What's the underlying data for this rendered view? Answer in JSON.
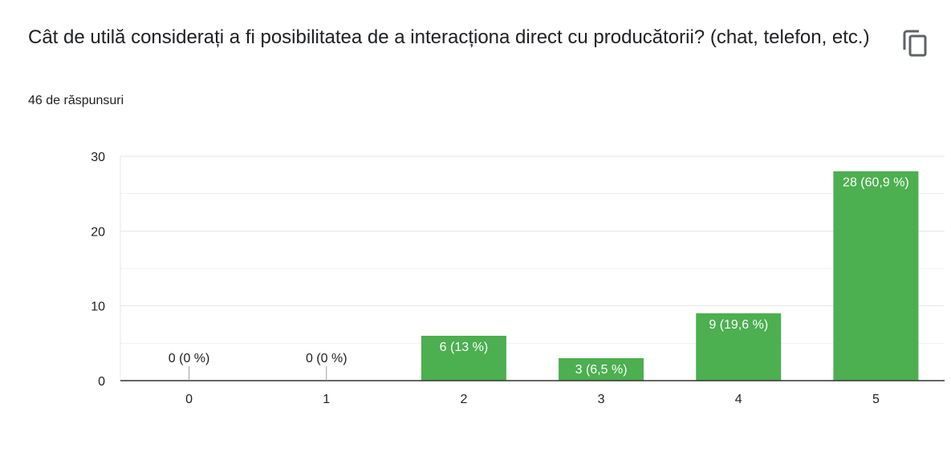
{
  "question": {
    "title": "Cât de utilă considerați a fi posibilitatea de a interacționa direct cu producătorii? (chat, telefon, etc.)",
    "response_count": "46 de răspunsuri",
    "copy_icon": "copy-icon"
  },
  "colors": {
    "bar": "#4caf50",
    "grid": "#e8e8e8",
    "axis": "#333333",
    "text": "#202124"
  },
  "chart_data": {
    "type": "bar",
    "categories": [
      "0",
      "1",
      "2",
      "3",
      "4",
      "5"
    ],
    "values": [
      0,
      0,
      6,
      3,
      9,
      28
    ],
    "labels": [
      "0 (0 %)",
      "0 (0 %)",
      "6 (13 %)",
      "3 (6,5 %)",
      "9 (19,6 %)",
      "28 (60,9 %)"
    ],
    "yticks": [
      "0",
      "10",
      "20",
      "30"
    ],
    "ylim": [
      0,
      30
    ],
    "grid": true,
    "legend": "none"
  }
}
